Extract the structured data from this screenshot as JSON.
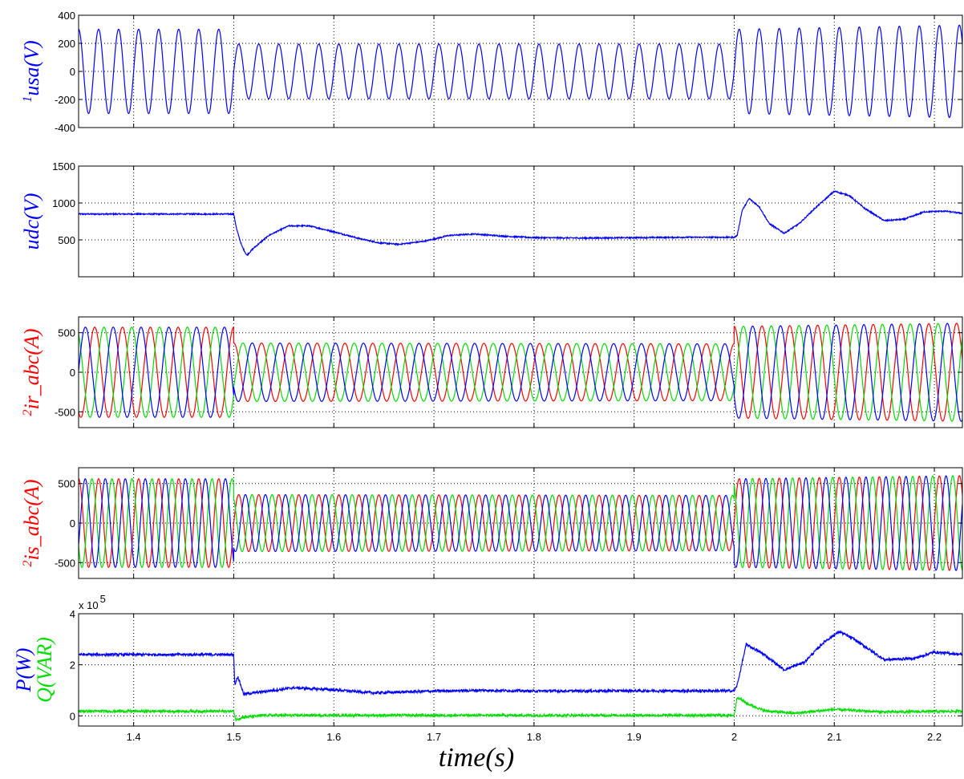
{
  "colors": {
    "blue": "#0000ff",
    "red": "#ff0000",
    "green": "#00dd00",
    "axis": "#000000",
    "grid": "#000000"
  },
  "figure": {
    "xlabel": "time(s)"
  },
  "chart_data": [
    {
      "type": "line",
      "ylabel_prefix": "1",
      "ylabel": "usa(V)",
      "ylabel_color": "#0000ff",
      "xlim": [
        1.345,
        2.228
      ],
      "ylim": [
        -400,
        400
      ],
      "yticks": [
        -400,
        -200,
        0,
        200,
        400
      ],
      "xticks": [
        1.4,
        1.5,
        1.6,
        1.7,
        1.8,
        1.9,
        2.0,
        2.1,
        2.2
      ],
      "show_xtick_labels": false,
      "grid": true,
      "series": [
        {
          "color": "#0000ff",
          "kind": "sine",
          "segments": [
            {
              "t0": 1.345,
              "t1": 1.5,
              "freq": 50,
              "amp": [
                300,
                300
              ],
              "phase": 0
            },
            {
              "t0": 1.5,
              "t1": 2.0,
              "freq": 50,
              "amp": [
                195,
                195
              ],
              "phase": 0
            },
            {
              "t0": 2.0,
              "t1": 2.228,
              "freq": 50,
              "amp": [
                300,
                330
              ],
              "phase": 0
            }
          ]
        }
      ]
    },
    {
      "type": "line",
      "ylabel_prefix": "",
      "ylabel": "udc(V)",
      "ylabel_color": "#0000ff",
      "xlim": [
        1.345,
        2.228
      ],
      "ylim": [
        0,
        1500
      ],
      "yticks": [
        500,
        1000,
        1500
      ],
      "xticks": [
        1.4,
        1.5,
        1.6,
        1.7,
        1.8,
        1.9,
        2.0,
        2.1,
        2.2
      ],
      "show_xtick_labels": false,
      "grid": true,
      "series": [
        {
          "color": "#0000ff",
          "kind": "points",
          "points": [
            [
              1.345,
              850
            ],
            [
              1.5,
              850
            ],
            [
              1.503,
              640
            ],
            [
              1.508,
              420
            ],
            [
              1.513,
              290
            ],
            [
              1.52,
              390
            ],
            [
              1.535,
              560
            ],
            [
              1.555,
              690
            ],
            [
              1.575,
              690
            ],
            [
              1.6,
              610
            ],
            [
              1.625,
              520
            ],
            [
              1.645,
              460
            ],
            [
              1.665,
              440
            ],
            [
              1.69,
              480
            ],
            [
              1.715,
              560
            ],
            [
              1.74,
              580
            ],
            [
              1.77,
              550
            ],
            [
              1.8,
              530
            ],
            [
              1.85,
              525
            ],
            [
              1.9,
              530
            ],
            [
              1.95,
              535
            ],
            [
              2.0,
              535
            ],
            [
              2.003,
              560
            ],
            [
              2.008,
              900
            ],
            [
              2.015,
              1060
            ],
            [
              2.025,
              950
            ],
            [
              2.035,
              720
            ],
            [
              2.05,
              590
            ],
            [
              2.065,
              720
            ],
            [
              2.08,
              920
            ],
            [
              2.1,
              1160
            ],
            [
              2.115,
              1100
            ],
            [
              2.13,
              930
            ],
            [
              2.15,
              760
            ],
            [
              2.17,
              780
            ],
            [
              2.19,
              880
            ],
            [
              2.21,
              890
            ],
            [
              2.228,
              860
            ]
          ],
          "noise": 9
        }
      ]
    },
    {
      "type": "line",
      "ylabel_prefix": "2",
      "ylabel": "ir_abc(A)",
      "ylabel_color": "#ff0000",
      "xlim": [
        1.345,
        2.228
      ],
      "ylim": [
        -700,
        700
      ],
      "yticks": [
        -500,
        0,
        500
      ],
      "xticks": [
        1.4,
        1.5,
        1.6,
        1.7,
        1.8,
        1.9,
        2.0,
        2.1,
        2.2
      ],
      "show_xtick_labels": false,
      "grid": true,
      "series": [
        {
          "color": "#ff0000",
          "kind": "sine",
          "segments": [
            {
              "t0": 1.345,
              "t1": 1.5,
              "freq": 36,
              "amp": [
                570,
                570
              ],
              "phase": 1.57
            },
            {
              "t0": 1.5,
              "t1": 2.0,
              "freq": 36,
              "amp": [
                370,
                360
              ],
              "phase": 1.57
            },
            {
              "t0": 2.0,
              "t1": 2.228,
              "freq": 36,
              "amp": [
                580,
                620
              ],
              "phase": 1.57
            }
          ]
        },
        {
          "color": "#00dd00",
          "kind": "sine",
          "segments": [
            {
              "t0": 1.345,
              "t1": 1.5,
              "freq": 36,
              "amp": [
                570,
                570
              ],
              "phase": -0.52
            },
            {
              "t0": 1.5,
              "t1": 2.0,
              "freq": 36,
              "amp": [
                370,
                360
              ],
              "phase": -0.52
            },
            {
              "t0": 2.0,
              "t1": 2.228,
              "freq": 36,
              "amp": [
                580,
                620
              ],
              "phase": -0.52
            }
          ]
        },
        {
          "color": "#0000ff",
          "kind": "sine",
          "segments": [
            {
              "t0": 1.345,
              "t1": 1.5,
              "freq": 36,
              "amp": [
                570,
                570
              ],
              "phase": 3.67
            },
            {
              "t0": 1.5,
              "t1": 2.0,
              "freq": 36,
              "amp": [
                370,
                360
              ],
              "phase": 3.67
            },
            {
              "t0": 2.0,
              "t1": 2.228,
              "freq": 36,
              "amp": [
                580,
                620
              ],
              "phase": 3.67
            }
          ]
        }
      ]
    },
    {
      "type": "line",
      "ylabel_prefix": "2",
      "ylabel": "is_abc(A)",
      "ylabel_color": "#ff0000",
      "xlim": [
        1.345,
        2.228
      ],
      "ylim": [
        -700,
        700
      ],
      "yticks": [
        -500,
        0,
        500
      ],
      "xticks": [
        1.4,
        1.5,
        1.6,
        1.7,
        1.8,
        1.9,
        2.0,
        2.1,
        2.2
      ],
      "show_xtick_labels": false,
      "grid": true,
      "series": [
        {
          "color": "#ff0000",
          "kind": "sine",
          "segments": [
            {
              "t0": 1.345,
              "t1": 1.5,
              "freq": 50,
              "amp": [
                560,
                560
              ],
              "phase": 0
            },
            {
              "t0": 1.5,
              "t1": 2.0,
              "freq": 50,
              "amp": [
                360,
                350
              ],
              "phase": 0
            },
            {
              "t0": 2.0,
              "t1": 2.228,
              "freq": 50,
              "amp": [
                560,
                600
              ],
              "phase": 0
            }
          ]
        },
        {
          "color": "#00dd00",
          "kind": "sine",
          "segments": [
            {
              "t0": 1.345,
              "t1": 1.5,
              "freq": 50,
              "amp": [
                560,
                560
              ],
              "phase": 2.09
            },
            {
              "t0": 1.5,
              "t1": 2.0,
              "freq": 50,
              "amp": [
                360,
                350
              ],
              "phase": 2.09
            },
            {
              "t0": 2.0,
              "t1": 2.228,
              "freq": 50,
              "amp": [
                560,
                600
              ],
              "phase": 2.09
            }
          ]
        },
        {
          "color": "#0000ff",
          "kind": "sine",
          "segments": [
            {
              "t0": 1.345,
              "t1": 1.5,
              "freq": 50,
              "amp": [
                560,
                560
              ],
              "phase": 4.19
            },
            {
              "t0": 1.5,
              "t1": 2.0,
              "freq": 50,
              "amp": [
                360,
                350
              ],
              "phase": 4.19
            },
            {
              "t0": 2.0,
              "t1": 2.228,
              "freq": 50,
              "amp": [
                560,
                600
              ],
              "phase": 4.19
            }
          ]
        }
      ]
    },
    {
      "type": "line",
      "ylabel_prefix": "",
      "ylabel": "P(W)",
      "ylabel_color": "#0000ff",
      "ylabel2": "Q(VAR)",
      "ylabel2_color": "#00dd00",
      "y_exponent_base": "x 10",
      "y_exponent": "5",
      "xlim": [
        1.345,
        2.228
      ],
      "ylim": [
        -0.4,
        4
      ],
      "yticks": [
        0,
        2,
        4
      ],
      "xticks": [
        1.4,
        1.5,
        1.6,
        1.7,
        1.8,
        1.9,
        2.0,
        2.1,
        2.2
      ],
      "xtick_labels": [
        "1.4",
        "1.5",
        "1.6",
        "1.7",
        "1.8",
        "1.9",
        "2",
        "2.1",
        "2.2"
      ],
      "show_xtick_labels": true,
      "grid": true,
      "series": [
        {
          "color": "#0000ff",
          "kind": "points",
          "points": [
            [
              1.345,
              2.4
            ],
            [
              1.5,
              2.4
            ],
            [
              1.501,
              1.2
            ],
            [
              1.504,
              1.55
            ],
            [
              1.51,
              0.85
            ],
            [
              1.53,
              0.95
            ],
            [
              1.56,
              1.1
            ],
            [
              1.6,
              1.02
            ],
            [
              1.64,
              0.9
            ],
            [
              1.7,
              0.97
            ],
            [
              1.75,
              1.0
            ],
            [
              1.8,
              0.97
            ],
            [
              1.9,
              0.98
            ],
            [
              2.0,
              0.98
            ],
            [
              2.003,
              1.2
            ],
            [
              2.012,
              2.8
            ],
            [
              2.03,
              2.4
            ],
            [
              2.05,
              1.8
            ],
            [
              2.07,
              2.1
            ],
            [
              2.09,
              2.9
            ],
            [
              2.105,
              3.3
            ],
            [
              2.12,
              3.0
            ],
            [
              2.15,
              2.2
            ],
            [
              2.18,
              2.25
            ],
            [
              2.2,
              2.5
            ],
            [
              2.228,
              2.4
            ]
          ],
          "noise": 0.05
        },
        {
          "color": "#00dd00",
          "kind": "points",
          "points": [
            [
              1.345,
              0.18
            ],
            [
              1.5,
              0.18
            ],
            [
              1.502,
              -0.15
            ],
            [
              1.51,
              -0.05
            ],
            [
              1.53,
              0.02
            ],
            [
              1.6,
              0.02
            ],
            [
              1.8,
              0.02
            ],
            [
              2.0,
              0.02
            ],
            [
              2.003,
              0.75
            ],
            [
              2.012,
              0.5
            ],
            [
              2.03,
              0.2
            ],
            [
              2.06,
              0.1
            ],
            [
              2.1,
              0.25
            ],
            [
              2.15,
              0.15
            ],
            [
              2.228,
              0.18
            ]
          ],
          "noise": 0.05
        }
      ]
    }
  ]
}
